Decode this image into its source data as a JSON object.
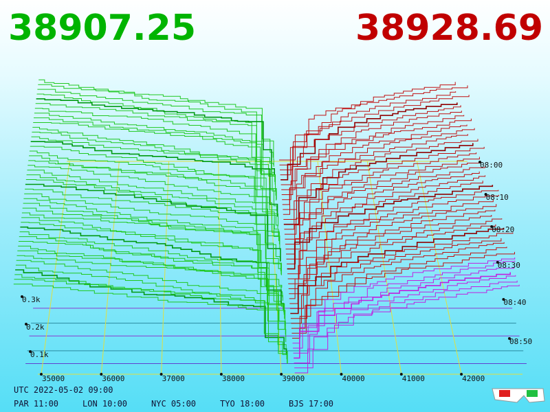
{
  "header": {
    "bid": "38907.25",
    "ask": "38928.69"
  },
  "price_axis": {
    "ticks": [
      "35000",
      "36000",
      "37000",
      "38000",
      "39000",
      "40000",
      "41000",
      "42000"
    ]
  },
  "depth_axis": {
    "ticks": [
      "0.3k",
      "0.2k",
      "0.1k"
    ]
  },
  "time_axis": {
    "ticks": [
      "08:00",
      "08:10",
      "08:20",
      "08:30",
      "08:40",
      "08:50"
    ]
  },
  "footer": {
    "utc": "UTC 2022-05-02 09:00",
    "cities": [
      "PAR 11:00",
      "LON 10:00",
      "NYC 05:00",
      "TYO 18:00",
      "BJS 17:00"
    ]
  }
}
